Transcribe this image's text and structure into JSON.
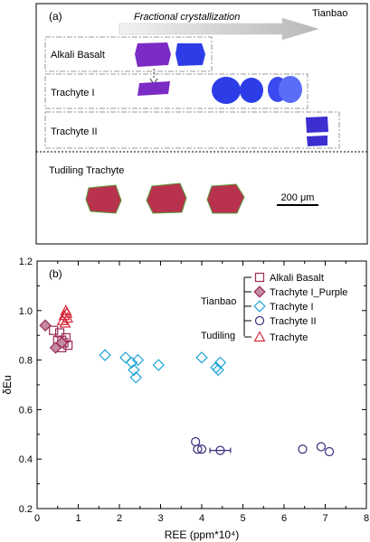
{
  "panel_a": {
    "label": "(a)",
    "arrow_text": "Fractional crystallization",
    "location": "Tianbao",
    "groups": [
      "Alkali Basalt",
      "Trachyte I",
      "Trachyte II"
    ],
    "tudiling_label": "Tudiling Trachyte",
    "scale_bar": "200 μm",
    "colors": {
      "blue_crystal": "#2c3de8",
      "purple_crystal": "#7a2cc4",
      "red_crystal": "#b8324e",
      "dark_bg": "#000000"
    }
  },
  "panel_b": {
    "label": "(b)",
    "legend": {
      "group1": "Tianbao",
      "group2": "Tudiling",
      "entries": [
        "Alkali Basalt",
        "Trachyte I_Purple",
        "Trachyte I",
        "Trachyte II",
        "Trachyte"
      ]
    }
  },
  "chart_data": {
    "type": "scatter",
    "xlabel": "REE (ppm*10⁴)",
    "ylabel": "δEu",
    "xlim": [
      0,
      8
    ],
    "ylim": [
      0.2,
      1.2
    ],
    "xticks": [
      "0",
      "1",
      "2",
      "3",
      "4",
      "5",
      "6",
      "7",
      "8"
    ],
    "yticks": [
      "0.2",
      "0.4",
      "0.6",
      "0.8",
      "1.0",
      "1.2"
    ],
    "series": [
      {
        "name": "Alkali Basalt",
        "marker": "square",
        "color": "#9b2a55",
        "points": [
          [
            0.4,
            0.92
          ],
          [
            0.55,
            0.91
          ],
          [
            0.6,
            0.88
          ],
          [
            0.65,
            0.87
          ],
          [
            0.7,
            0.89
          ],
          [
            0.75,
            0.86
          ],
          [
            0.6,
            0.85
          ],
          [
            0.5,
            0.88
          ]
        ]
      },
      {
        "name": "Trachyte I_Purple",
        "marker": "diamond",
        "color": "#9b2a55",
        "fill": "#c48aa3",
        "points": [
          [
            0.2,
            0.94
          ],
          [
            0.45,
            0.85
          ],
          [
            0.6,
            0.87
          ]
        ]
      },
      {
        "name": "Trachyte I",
        "marker": "diamond",
        "color": "#1ea3d8",
        "points": [
          [
            1.65,
            0.82
          ],
          [
            2.15,
            0.81
          ],
          [
            2.45,
            0.8
          ],
          [
            2.3,
            0.79
          ],
          [
            2.35,
            0.76
          ],
          [
            2.4,
            0.73
          ],
          [
            2.95,
            0.78
          ],
          [
            4.0,
            0.81
          ],
          [
            4.45,
            0.79
          ],
          [
            4.4,
            0.76
          ],
          [
            4.35,
            0.77
          ]
        ]
      },
      {
        "name": "Trachyte II",
        "marker": "circle",
        "color": "#3a2a7a",
        "points": [
          [
            3.85,
            0.47
          ],
          [
            3.9,
            0.44
          ],
          [
            4.0,
            0.44
          ],
          [
            4.45,
            0.435
          ],
          [
            6.45,
            0.44
          ],
          [
            6.9,
            0.45
          ],
          [
            7.1,
            0.43
          ]
        ],
        "xerror": [
          null,
          null,
          null,
          0.25,
          null,
          null,
          null
        ]
      },
      {
        "name": "Trachyte",
        "marker": "triangle",
        "color": "#d8273a",
        "points": [
          [
            0.62,
            0.96
          ],
          [
            0.66,
            0.98
          ],
          [
            0.7,
            1.0
          ],
          [
            0.72,
            0.99
          ],
          [
            0.74,
            0.97
          ],
          [
            0.68,
            0.95
          ]
        ]
      }
    ]
  }
}
